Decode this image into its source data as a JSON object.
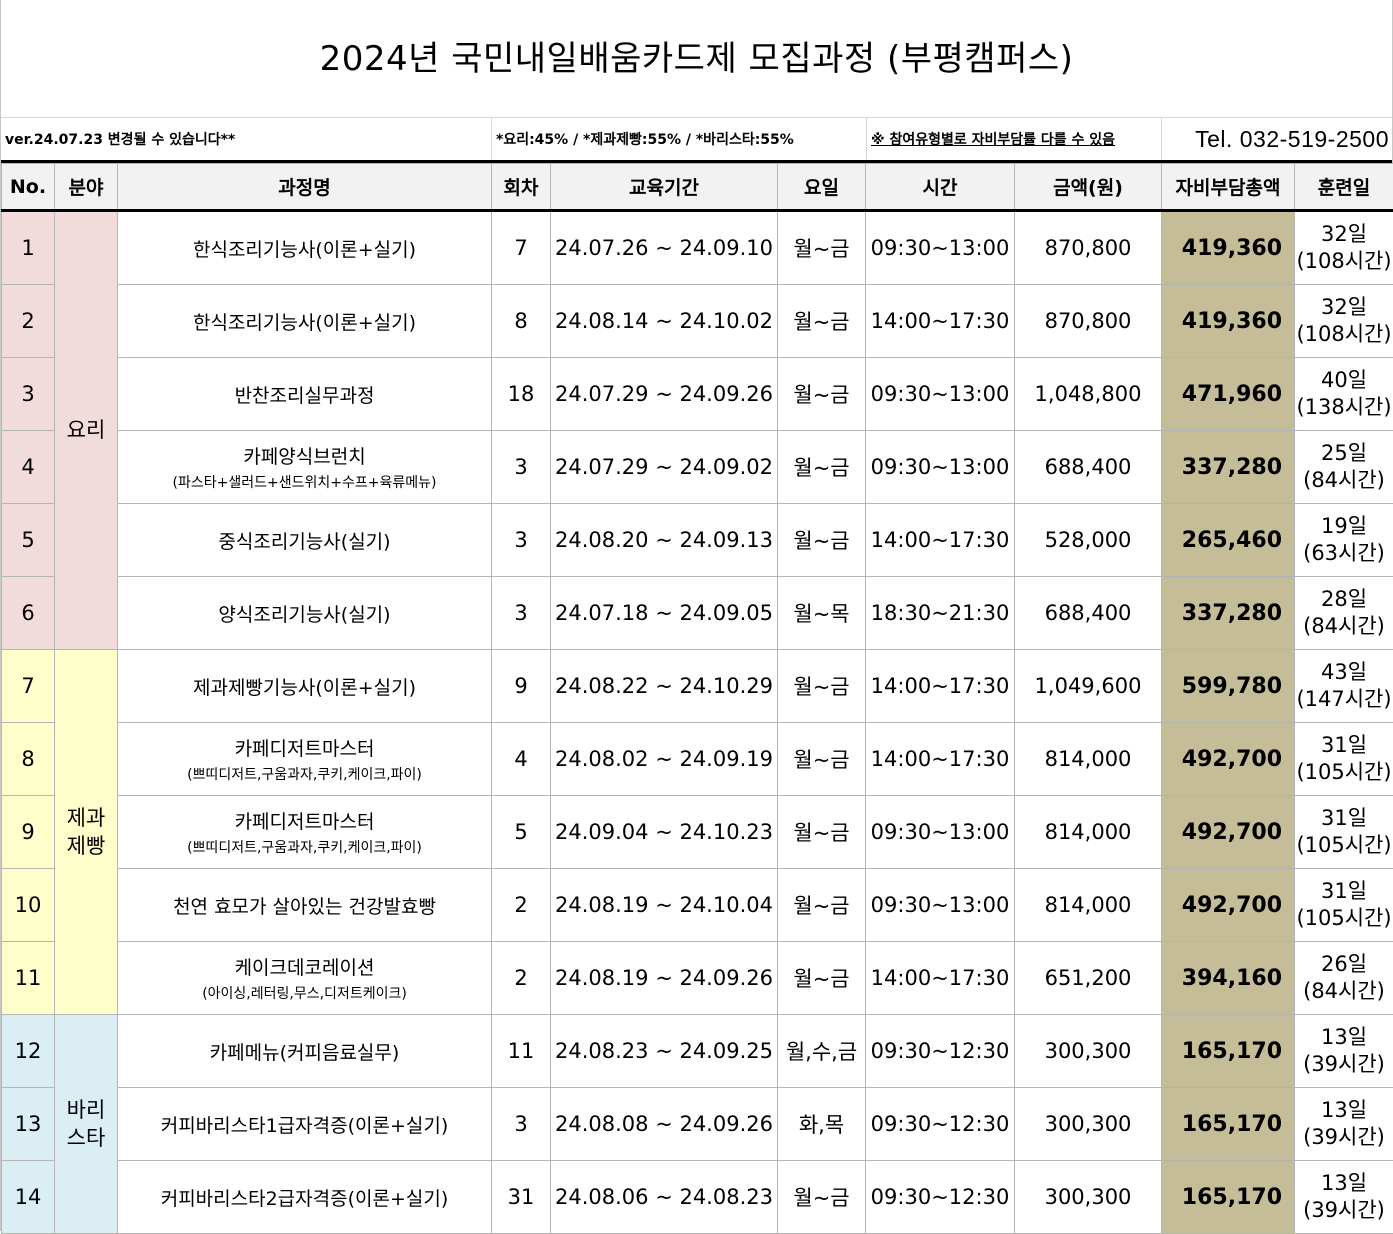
{
  "title": "2024년 국민내일배움카드제 모집과정 (부평캠퍼스)",
  "info": {
    "version": "ver.24.07.23 변경될 수 있습니다**",
    "ratio": "*요리:45% / *제과제빵:55% / *바리스타:55%",
    "note": "※ 참여유형별로 자비부담률 다를 수 있음",
    "tel": "Tel. 032-519-2500"
  },
  "columns": {
    "no": "No.",
    "field": "분야",
    "name": "과정명",
    "round": "회차",
    "period": "교육기간",
    "weekday": "요일",
    "time": "시간",
    "amount": "금액(원)",
    "copay": "자비부담총액",
    "days": "훈련일"
  },
  "fields": {
    "cook": "요리",
    "bake": "제과\n제빵",
    "barista": "바리\n스타"
  },
  "rows": [
    {
      "no": "1",
      "name": "한식조리기능사(이론+실기)",
      "sub": "",
      "round": "7",
      "period": "24.07.26 ~ 24.09.10",
      "weekday": "월~금",
      "time": "09:30~13:00",
      "amount": "870,800",
      "copay": "419,360",
      "days": "32일",
      "hours": "(108시간)"
    },
    {
      "no": "2",
      "name": "한식조리기능사(이론+실기)",
      "sub": "",
      "round": "8",
      "period": "24.08.14 ~ 24.10.02",
      "weekday": "월~금",
      "time": "14:00~17:30",
      "amount": "870,800",
      "copay": "419,360",
      "days": "32일",
      "hours": "(108시간)"
    },
    {
      "no": "3",
      "name": "반찬조리실무과정",
      "sub": "",
      "round": "18",
      "period": "24.07.29 ~ 24.09.26",
      "weekday": "월~금",
      "time": "09:30~13:00",
      "amount": "1,048,800",
      "copay": "471,960",
      "days": "40일",
      "hours": "(138시간)"
    },
    {
      "no": "4",
      "name": "카페양식브런치",
      "sub": "(파스타+샐러드+샌드위치+수프+육류메뉴)",
      "round": "3",
      "period": "24.07.29 ~ 24.09.02",
      "weekday": "월~금",
      "time": "09:30~13:00",
      "amount": "688,400",
      "copay": "337,280",
      "days": "25일",
      "hours": "(84시간)"
    },
    {
      "no": "5",
      "name": "중식조리기능사(실기)",
      "sub": "",
      "round": "3",
      "period": "24.08.20 ~ 24.09.13",
      "weekday": "월~금",
      "time": "14:00~17:30",
      "amount": "528,000",
      "copay": "265,460",
      "days": "19일",
      "hours": "(63시간)"
    },
    {
      "no": "6",
      "name": "양식조리기능사(실기)",
      "sub": "",
      "round": "3",
      "period": "24.07.18 ~ 24.09.05",
      "weekday": "월~목",
      "time": "18:30~21:30",
      "amount": "688,400",
      "copay": "337,280",
      "days": "28일",
      "hours": "(84시간)"
    },
    {
      "no": "7",
      "name": "제과제빵기능사(이론+실기)",
      "sub": "",
      "round": "9",
      "period": "24.08.22 ~ 24.10.29",
      "weekday": "월~금",
      "time": "14:00~17:30",
      "amount": "1,049,600",
      "copay": "599,780",
      "days": "43일",
      "hours": "(147시간)"
    },
    {
      "no": "8",
      "name": "카페디저트마스터",
      "sub": "(쁘띠디저트,구움과자,쿠키,케이크,파이)",
      "round": "4",
      "period": "24.08.02 ~ 24.09.19",
      "weekday": "월~금",
      "time": "14:00~17:30",
      "amount": "814,000",
      "copay": "492,700",
      "days": "31일",
      "hours": "(105시간)"
    },
    {
      "no": "9",
      "name": "카페디저트마스터",
      "sub": "(쁘띠디저트,구움과자,쿠키,케이크,파이)",
      "round": "5",
      "period": "24.09.04 ~ 24.10.23",
      "weekday": "월~금",
      "time": "09:30~13:00",
      "amount": "814,000",
      "copay": "492,700",
      "days": "31일",
      "hours": "(105시간)"
    },
    {
      "no": "10",
      "name": "천연 효모가 살아있는 건강발효빵",
      "sub": "",
      "round": "2",
      "period": "24.08.19 ~ 24.10.04",
      "weekday": "월~금",
      "time": "09:30~13:00",
      "amount": "814,000",
      "copay": "492,700",
      "days": "31일",
      "hours": "(105시간)"
    },
    {
      "no": "11",
      "name": "케이크데코레이션",
      "sub": "(아이싱,레터링,무스,디저트케이크)",
      "round": "2",
      "period": "24.08.19 ~ 24.09.26",
      "weekday": "월~금",
      "time": "14:00~17:30",
      "amount": "651,200",
      "copay": "394,160",
      "days": "26일",
      "hours": "(84시간)"
    },
    {
      "no": "12",
      "name": "카페메뉴(커피음료실무)",
      "sub": "",
      "round": "11",
      "period": "24.08.23 ~ 24.09.25",
      "weekday": "월,수,금",
      "time": "09:30~12:30",
      "amount": "300,300",
      "copay": "165,170",
      "days": "13일",
      "hours": "(39시간)"
    },
    {
      "no": "13",
      "name": "커피바리스타1급자격증(이론+실기)",
      "sub": "",
      "round": "3",
      "period": "24.08.08 ~ 24.09.26",
      "weekday": "화,목",
      "time": "09:30~12:30",
      "amount": "300,300",
      "copay": "165,170",
      "days": "13일",
      "hours": "(39시간)"
    },
    {
      "no": "14",
      "name": "커피바리스타2급자격증(이론+실기)",
      "sub": "",
      "round": "31",
      "period": "24.08.06 ~ 24.08.23",
      "weekday": "월~금",
      "time": "09:30~12:30",
      "amount": "300,300",
      "copay": "165,170",
      "days": "13일",
      "hours": "(39시간)"
    }
  ],
  "colors": {
    "cook": "#f2dcdb",
    "bake": "#ffffcc",
    "barista": "#daeef3",
    "copay": "#c4bd97",
    "header": "#f2f2f2"
  }
}
